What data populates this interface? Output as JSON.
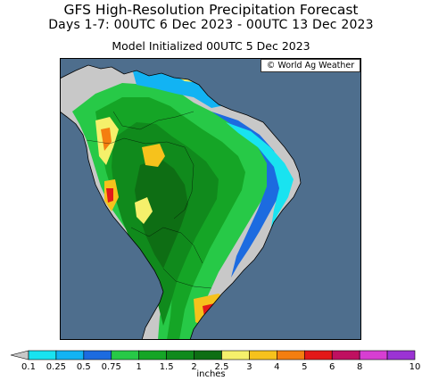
{
  "header": {
    "title": "GFS High-Resolution Precipitation Forecast",
    "period": "Days 1-7: 00UTC 6 Dec 2023 - 00UTC 13 Dec 2023",
    "init": "Model Initialized 00UTC 5 Dec 2023"
  },
  "credit": "© World Ag Weather",
  "legend": {
    "unit": "inches",
    "levels": [
      {
        "label": "0.1",
        "color": "#19e3f0"
      },
      {
        "label": "0.25",
        "color": "#12b3f3"
      },
      {
        "label": "0.5",
        "color": "#1c6be0"
      },
      {
        "label": "0.75",
        "color": "#27c947"
      },
      {
        "label": "1",
        "color": "#15a526"
      },
      {
        "label": "1.5",
        "color": "#108a1c"
      },
      {
        "label": "2",
        "color": "#0e6e14"
      },
      {
        "label": "2.5",
        "color": "#f5f06b"
      },
      {
        "label": "3",
        "color": "#f6c21c"
      },
      {
        "label": "4",
        "color": "#f47e10"
      },
      {
        "label": "5",
        "color": "#e31919"
      },
      {
        "label": "6",
        "color": "#bf1060"
      },
      {
        "label": "8",
        "color": "#d73ed2"
      },
      {
        "label": "10",
        "color": "#9b33d4"
      }
    ],
    "colors": {
      "below": "#c8c8c8",
      "ocean": "#4e6e8d",
      "land_dry": "#c8c8c8"
    }
  }
}
